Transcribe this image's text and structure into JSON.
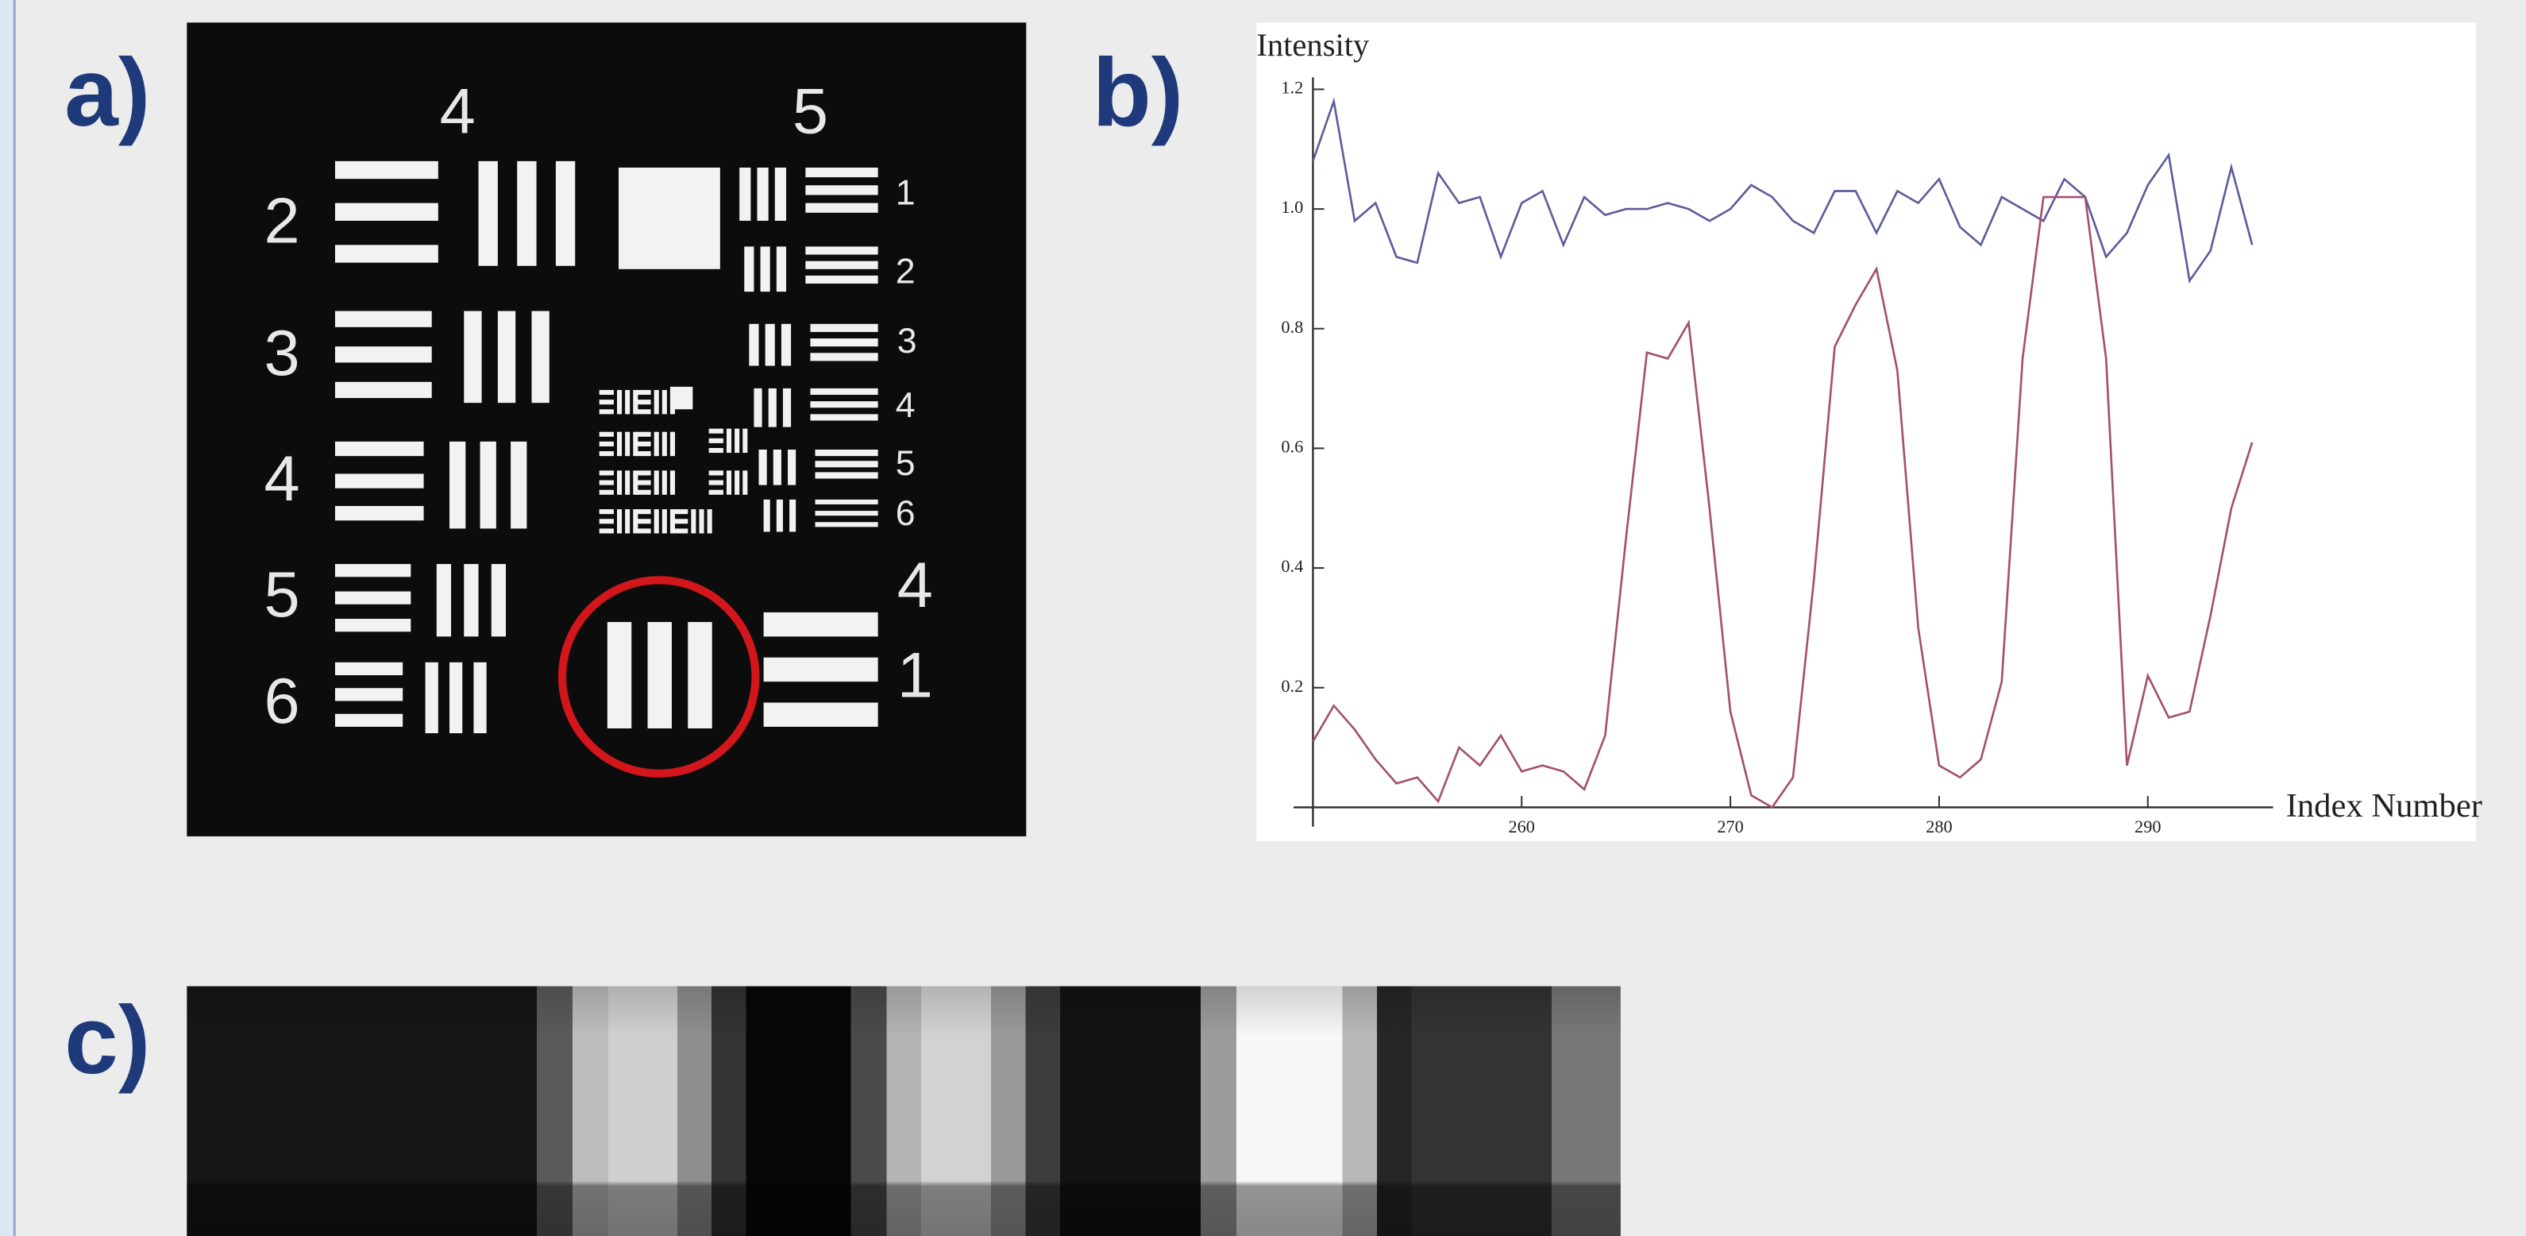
{
  "panel_labels": [
    "a)",
    "b)",
    "c)"
  ],
  "panel_a": {
    "labels": [
      "4",
      "5",
      "2",
      "3",
      "4",
      "5",
      "6",
      "1",
      "2",
      "3",
      "4",
      "5",
      "6",
      "4",
      "1"
    ]
  },
  "chart_data": {
    "type": "line",
    "y_label": "Intensity",
    "x_label": "Index Number",
    "x": [
      250,
      251,
      252,
      253,
      254,
      255,
      256,
      257,
      258,
      259,
      260,
      261,
      262,
      263,
      264,
      265,
      266,
      267,
      268,
      269,
      270,
      271,
      272,
      273,
      274,
      275,
      276,
      277,
      278,
      279,
      280,
      281,
      282,
      283,
      284,
      285,
      286,
      287,
      288,
      289,
      290,
      291,
      292,
      293,
      294,
      295
    ],
    "series": [
      {
        "color": "#5c5c9c",
        "values": [
          1.08,
          1.18,
          0.98,
          1.01,
          0.92,
          0.91,
          1.06,
          1.01,
          1.02,
          0.92,
          1.01,
          1.03,
          0.94,
          1.02,
          0.99,
          1.0,
          1.0,
          1.01,
          1.0,
          0.98,
          1.0,
          1.04,
          1.02,
          0.98,
          0.96,
          1.03,
          1.03,
          0.96,
          1.03,
          1.01,
          1.05,
          0.97,
          0.94,
          1.02,
          1.0,
          0.98,
          1.05,
          1.02,
          0.92,
          0.96,
          1.04,
          1.09,
          0.88,
          0.93,
          1.07,
          0.94
        ]
      },
      {
        "color": "#a3506f",
        "values": [
          0.11,
          0.17,
          0.13,
          0.08,
          0.04,
          0.05,
          0.01,
          0.1,
          0.07,
          0.12,
          0.06,
          0.07,
          0.06,
          0.03,
          0.12,
          0.45,
          0.76,
          0.75,
          0.81,
          0.5,
          0.16,
          0.02,
          0.0,
          0.05,
          0.38,
          0.77,
          0.84,
          0.9,
          0.73,
          0.3,
          0.07,
          0.05,
          0.08,
          0.21,
          0.75,
          1.02,
          1.02,
          1.02,
          0.75,
          0.07,
          0.22,
          0.15,
          0.16,
          0.32,
          0.5,
          0.61
        ]
      }
    ],
    "xlim": [
      250,
      296
    ],
    "ylim": [
      0,
      1.22
    ],
    "xticks": [
      260,
      270,
      280,
      290
    ],
    "yticks": [
      0.2,
      0.4,
      0.6,
      0.8,
      {
        "value": 1,
        "label": "1.0"
      },
      1.2
    ]
  }
}
